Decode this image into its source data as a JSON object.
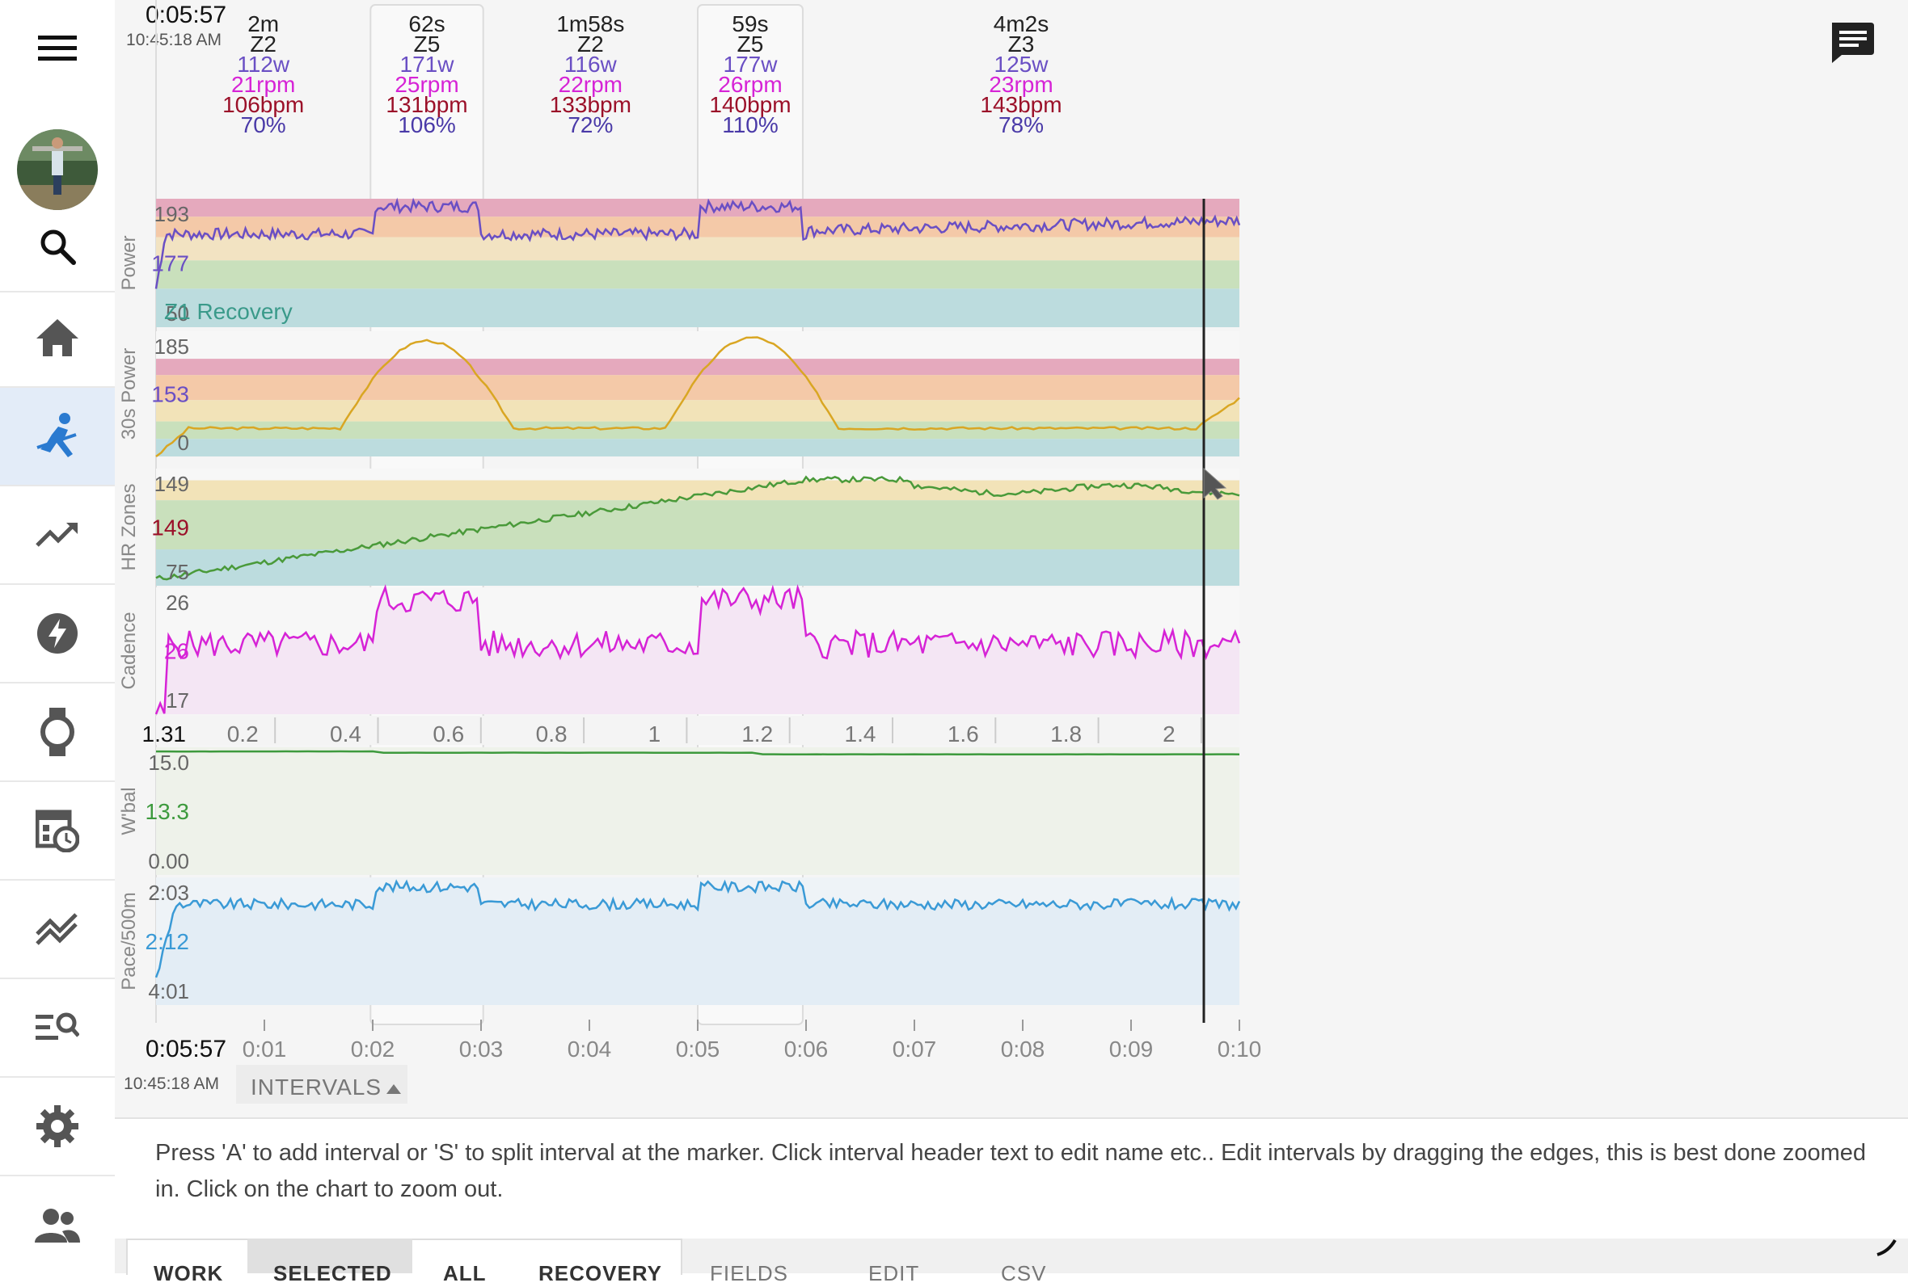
{
  "header": {
    "elapsed": "0:05:57",
    "clock": "10:45:18 AM"
  },
  "intervals": [
    {
      "duration": "2m",
      "zone": "Z2",
      "watts": "112w",
      "rpm": "21rpm",
      "bpm": "106bpm",
      "pct": "70%",
      "start": 0.0,
      "end": 1.98
    },
    {
      "duration": "62s",
      "zone": "Z5",
      "watts": "171w",
      "rpm": "25rpm",
      "bpm": "131bpm",
      "pct": "106%",
      "start": 1.98,
      "end": 3.02
    },
    {
      "duration": "1m58s",
      "zone": "Z2",
      "watts": "116w",
      "rpm": "22rpm",
      "bpm": "133bpm",
      "pct": "72%",
      "start": 3.02,
      "end": 5.0
    },
    {
      "duration": "59s",
      "zone": "Z5",
      "watts": "177w",
      "rpm": "26rpm",
      "bpm": "140bpm",
      "pct": "110%",
      "start": 5.0,
      "end": 5.97
    },
    {
      "duration": "4m2s",
      "zone": "Z3",
      "watts": "125w",
      "rpm": "23rpm",
      "bpm": "143bpm",
      "pct": "78%",
      "start": 5.97,
      "end": 10.0
    }
  ],
  "panels": {
    "power": {
      "label": "Power",
      "top": "193",
      "current": "177",
      "bottom": "50",
      "zone_label": "Z1 Recovery"
    },
    "power30": {
      "label": "30s Power",
      "top": "185",
      "current": "153",
      "bottom": "0"
    },
    "hr": {
      "label": "HR Zones",
      "top": "149",
      "current": "149",
      "bottom": "75"
    },
    "cadence": {
      "label": "Cadence",
      "top": "26",
      "current": "26",
      "bottom": "17"
    },
    "wbal": {
      "label": "W'bal",
      "top": "15.0",
      "current": "13.3",
      "bottom": "0.00"
    },
    "pace": {
      "label": "Pace/500m",
      "top": "2:03",
      "current": "2:12",
      "bottom": "4:01"
    }
  },
  "distance_axis": {
    "current": "1.31",
    "ticks": [
      "0.2",
      "0.4",
      "0.6",
      "0.8",
      "1",
      "1.2",
      "1.4",
      "1.6",
      "1.8",
      "2"
    ]
  },
  "time_axis": {
    "current": "0:05:57",
    "clock": "10:45:18 AM",
    "ticks": [
      "0:01",
      "0:02",
      "0:03",
      "0:04",
      "0:05",
      "0:06",
      "0:07",
      "0:08",
      "0:09",
      "0:10"
    ]
  },
  "intervals_toggle": {
    "label": "INTERVALS",
    "icon": "triangle-up-icon"
  },
  "help_text": "Press 'A' to add interval or 'S' to split interval at the marker. Click interval header text to edit name etc.. Edit intervals by dragging the edges, this is best done zoomed in. Click on the chart to zoom out.",
  "tabs": [
    "WORK",
    "SELECTED",
    "ALL",
    "RECOVERY",
    "FIELDS",
    "EDIT",
    "CSV"
  ],
  "nav_items": [
    "menu",
    "avatar",
    "search",
    "home",
    "activity",
    "fitness",
    "power",
    "watch",
    "calendar",
    "compare",
    "search-list",
    "settings",
    "people"
  ],
  "colors": {
    "power": "#6a4fc4",
    "rpm": "#d623d6",
    "bpm": "#9b1029",
    "pct": "#4a3aa8",
    "wbal": "#3d9a3d",
    "pace": "#3a9ad6",
    "accent": "#2a7ad0"
  }
}
